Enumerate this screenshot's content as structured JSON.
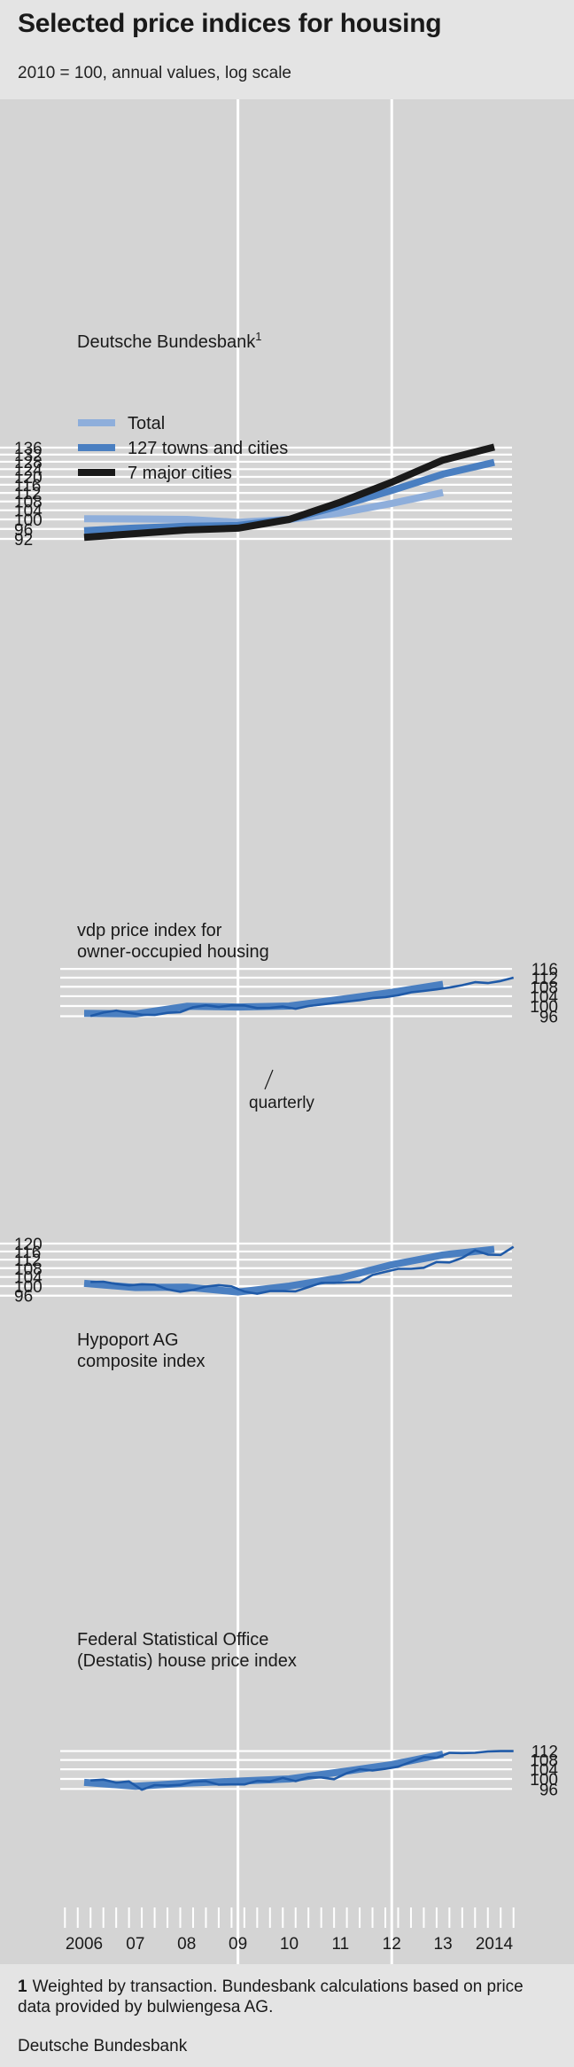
{
  "header": {
    "title": "Selected price indices for housing",
    "subtitle": "2010 = 100, annual values, log scale"
  },
  "footer": {
    "footnote_marker": "1",
    "footnote_text": "Weighted by transaction. Bundesbank calculations based on price data provided by bulwiengesa AG.",
    "source": "Deutsche Bundesbank"
  },
  "colors": {
    "background": "#d4d4d4",
    "grid": "#ffffff",
    "light_blue": "#8eaedb",
    "mid_blue": "#4a7fc1",
    "dark_blue": "#1f5aa8",
    "black": "#1a1a1a"
  },
  "chart_data": [
    {
      "type": "line",
      "title": "Deutsche Bundesbank¹",
      "scale": "log",
      "axis_side": "left",
      "ylim": [
        90,
        138
      ],
      "yticks": [
        92,
        96,
        100,
        104,
        108,
        112,
        116,
        120,
        124,
        128,
        132,
        136
      ],
      "legend_position": "upper-left",
      "series": [
        {
          "name": "Total",
          "color": "#8eaedb",
          "x": [
            2006,
            2007,
            2008,
            2009,
            2010,
            2011,
            2012,
            2013
          ],
          "values": [
            100.3,
            100.2,
            100.0,
            98.8,
            100.0,
            102.8,
            107.1,
            112.2
          ]
        },
        {
          "name": "127 towns and cities",
          "color": "#4a7fc1",
          "x": [
            2006,
            2007,
            2008,
            2009,
            2010,
            2011,
            2012,
            2013,
            2014
          ],
          "values": [
            95.3,
            96.4,
            97.1,
            97.4,
            100.0,
            106.1,
            113.2,
            121.4,
            127.7
          ]
        },
        {
          "name": "7 major cities",
          "color": "#1a1a1a",
          "x": [
            2006,
            2007,
            2008,
            2009,
            2010,
            2011,
            2012,
            2013,
            2014
          ],
          "values": [
            92.6,
            94.1,
            95.6,
            96.3,
            100.0,
            107.7,
            117.3,
            128.9,
            136.3
          ]
        }
      ]
    },
    {
      "type": "line",
      "title": "vdp price index for owner-occupied housing",
      "annotation": "quarterly",
      "scale": "log",
      "axis_side": "right",
      "ylim": [
        95,
        118
      ],
      "yticks": [
        96,
        100,
        104,
        108,
        112,
        116
      ],
      "series": [
        {
          "kind": "annual",
          "x": [
            2006,
            2007,
            2008,
            2009,
            2010,
            2011,
            2012,
            2013
          ],
          "values": [
            97.1,
            96.9,
            99.9,
            99.6,
            100.0,
            102.7,
            105.6,
            109.1
          ]
        },
        {
          "kind": "quarterly",
          "x": [
            2006.125,
            2006.375,
            2006.625,
            2006.875,
            2007.125,
            2007.375,
            2007.625,
            2007.875,
            2008.125,
            2008.375,
            2008.625,
            2008.875,
            2009.125,
            2009.375,
            2009.625,
            2009.875,
            2010.125,
            2010.375,
            2010.625,
            2010.875,
            2011.125,
            2011.375,
            2011.625,
            2011.875,
            2012.125,
            2012.375,
            2012.625,
            2012.875,
            2013.125,
            2013.375,
            2013.625,
            2013.875,
            2014.125,
            2014.375
          ],
          "values": [
            96.1,
            97.4,
            98.2,
            97.3,
            96.6,
            96.5,
            97.3,
            97.6,
            99.5,
            100.3,
            99.6,
            100.3,
            100.2,
            99.2,
            99.3,
            99.8,
            98.9,
            100.0,
            100.6,
            101.2,
            101.8,
            102.4,
            103.2,
            103.6,
            104.4,
            105.6,
            106.2,
            106.9,
            107.7,
            108.7,
            110.0,
            109.6,
            110.5,
            112.0
          ]
        }
      ]
    },
    {
      "type": "line",
      "title": "Hypoport AG composite index",
      "scale": "log",
      "axis_side": "left",
      "ylim": [
        94,
        121
      ],
      "yticks": [
        96,
        100,
        104,
        108,
        112,
        116,
        120
      ],
      "series": [
        {
          "kind": "annual",
          "x": [
            2006,
            2007,
            2008,
            2009,
            2010,
            2011,
            2012,
            2013,
            2014
          ],
          "values": [
            101.2,
            99.4,
            99.6,
            97.5,
            100.0,
            103.6,
            109.6,
            114.3,
            117.1
          ]
        },
        {
          "kind": "quarterly",
          "x": [
            2006.125,
            2006.375,
            2006.625,
            2006.875,
            2007.125,
            2007.375,
            2007.625,
            2007.875,
            2008.125,
            2008.375,
            2008.625,
            2008.875,
            2009.125,
            2009.375,
            2009.625,
            2009.875,
            2010.125,
            2010.375,
            2010.625,
            2010.875,
            2011.125,
            2011.375,
            2011.625,
            2011.875,
            2012.125,
            2012.375,
            2012.625,
            2012.875,
            2013.125,
            2013.375,
            2013.625,
            2013.875,
            2014.125,
            2014.375
          ],
          "values": [
            101.8,
            101.9,
            100.9,
            100.3,
            100.8,
            100.6,
            98.6,
            97.6,
            98.4,
            99.8,
            100.4,
            99.9,
            97.7,
            96.8,
            97.9,
            97.9,
            97.8,
            99.6,
            101.4,
            101.4,
            101.6,
            101.7,
            104.9,
            106.3,
            107.7,
            107.7,
            108.2,
            110.9,
            110.7,
            112.9,
            116.6,
            114.5,
            114.3,
            118.4
          ]
        }
      ]
    },
    {
      "type": "line",
      "title": "Federal Statistical Office (Destatis) house price index",
      "scale": "log",
      "axis_side": "right",
      "ylim": [
        94,
        113
      ],
      "yticks": [
        96,
        100,
        104,
        108,
        112
      ],
      "series": [
        {
          "kind": "annual",
          "x": [
            2006,
            2007,
            2008,
            2009,
            2010,
            2011,
            2012,
            2013
          ],
          "values": [
            98.6,
            97.1,
            98.3,
            99.1,
            100.0,
            102.9,
            106.0,
            110.6
          ]
        },
        {
          "kind": "quarterly",
          "x": [
            2006.125,
            2006.375,
            2006.625,
            2006.875,
            2007.125,
            2007.375,
            2007.625,
            2007.875,
            2008.125,
            2008.375,
            2008.625,
            2008.875,
            2009.125,
            2009.375,
            2009.625,
            2009.875,
            2010.125,
            2010.375,
            2010.625,
            2010.875,
            2011.125,
            2011.375,
            2011.625,
            2011.875,
            2012.125,
            2012.375,
            2012.625,
            2012.875,
            2013.125,
            2013.375,
            2013.625,
            2013.875,
            2014.125,
            2014.375
          ],
          "values": [
            99.4,
            99.7,
            98.5,
            99.0,
            95.7,
            97.5,
            97.3,
            97.6,
            98.9,
            99.1,
            97.7,
            97.8,
            97.8,
            99.2,
            99.0,
            100.4,
            99.1,
            100.6,
            100.6,
            99.9,
            102.4,
            104.0,
            103.5,
            104.2,
            105.1,
            107.2,
            109.3,
            109.0,
            111.2,
            111.1,
            111.2,
            111.8,
            112.0,
            112.0
          ]
        }
      ]
    }
  ],
  "x_axis": {
    "tick_labels": [
      "2006",
      "07",
      "08",
      "09",
      "10",
      "11",
      "12",
      "13",
      "2014"
    ],
    "years": [
      2006,
      2007,
      2008,
      2009,
      2010,
      2011,
      2012,
      2013,
      2014
    ],
    "highlighted_years": [
      2009,
      2012
    ]
  },
  "panel1": {
    "title_text": "Deutsche Bundesbank",
    "title_superscript": "1",
    "legend": [
      "Total",
      "127 towns and cities",
      "7 major cities"
    ]
  },
  "panel2": {
    "title_line1": "vdp price index for",
    "title_line2": "owner-occupied housing",
    "annotation": "quarterly"
  },
  "panel3": {
    "title_line1": "Hypoport AG",
    "title_line2": "composite index"
  },
  "panel4": {
    "title_line1": "Federal Statistical Office",
    "title_line2": "(Destatis) house price index"
  }
}
